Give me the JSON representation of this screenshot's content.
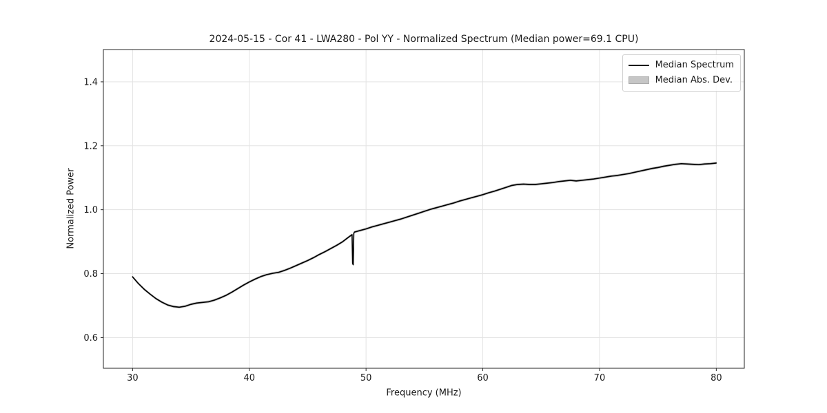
{
  "figure": {
    "background_color": "#ffffff"
  },
  "chart_data": {
    "type": "line",
    "title": "2024-05-15 - Cor 41 - LWA280 - Pol YY - Normalized Spectrum (Median power=69.1 CPU)",
    "xlabel": "Frequency (MHz)",
    "ylabel": "Normalized Power",
    "xlim": [
      27.5,
      82.4
    ],
    "ylim": [
      0.504,
      1.501
    ],
    "x_ticks": [
      30,
      40,
      50,
      60,
      70,
      80
    ],
    "y_ticks": [
      0.6,
      0.8,
      1.0,
      1.2,
      1.4
    ],
    "grid": true,
    "legend_position": "upper right",
    "legend": [
      {
        "label": "Median Spectrum",
        "handle": "line",
        "color": "#000000"
      },
      {
        "label": "Median Abs. Dev.",
        "handle": "patch",
        "color": "#c6c6c6"
      }
    ],
    "mad_band_halfwidth": 0.004,
    "notch": {
      "frequency_mhz": 48.9,
      "min_value": 0.828
    },
    "series": [
      {
        "name": "Median Spectrum",
        "x": [
          30.0,
          30.5,
          31.0,
          31.5,
          32.0,
          32.5,
          33.0,
          33.5,
          34.0,
          34.5,
          35.0,
          35.5,
          36.0,
          36.5,
          37.0,
          37.5,
          38.0,
          38.5,
          39.0,
          39.5,
          40.0,
          40.5,
          41.0,
          41.5,
          42.0,
          42.5,
          43.0,
          43.5,
          44.0,
          44.5,
          45.0,
          45.5,
          46.0,
          46.5,
          47.0,
          47.5,
          48.0,
          48.5,
          48.8,
          48.85,
          48.9,
          48.95,
          49.0,
          49.5,
          50.0,
          50.5,
          51.0,
          51.5,
          52.0,
          52.5,
          53.0,
          53.5,
          54.0,
          54.5,
          55.0,
          55.5,
          56.0,
          56.5,
          57.0,
          57.5,
          58.0,
          58.5,
          59.0,
          59.5,
          60.0,
          60.5,
          61.0,
          61.5,
          62.0,
          62.5,
          63.0,
          63.5,
          64.0,
          64.5,
          65.0,
          65.5,
          66.0,
          66.5,
          67.0,
          67.5,
          68.0,
          68.5,
          69.0,
          69.5,
          70.0,
          70.5,
          71.0,
          71.5,
          72.0,
          72.5,
          73.0,
          73.5,
          74.0,
          74.5,
          75.0,
          75.5,
          76.0,
          76.5,
          77.0,
          77.5,
          78.0,
          78.5,
          79.0,
          79.5,
          80.0
        ],
        "y": [
          0.79,
          0.769,
          0.751,
          0.736,
          0.722,
          0.711,
          0.702,
          0.697,
          0.695,
          0.698,
          0.704,
          0.708,
          0.71,
          0.712,
          0.717,
          0.724,
          0.732,
          0.742,
          0.753,
          0.764,
          0.774,
          0.783,
          0.791,
          0.797,
          0.801,
          0.804,
          0.81,
          0.817,
          0.825,
          0.833,
          0.841,
          0.85,
          0.86,
          0.869,
          0.879,
          0.889,
          0.9,
          0.914,
          0.922,
          0.832,
          0.828,
          0.926,
          0.93,
          0.935,
          0.94,
          0.946,
          0.951,
          0.956,
          0.961,
          0.966,
          0.971,
          0.977,
          0.983,
          0.989,
          0.995,
          1.001,
          1.006,
          1.011,
          1.016,
          1.021,
          1.027,
          1.032,
          1.037,
          1.042,
          1.047,
          1.053,
          1.058,
          1.064,
          1.07,
          1.076,
          1.079,
          1.08,
          1.079,
          1.079,
          1.081,
          1.083,
          1.085,
          1.088,
          1.09,
          1.092,
          1.09,
          1.092,
          1.094,
          1.096,
          1.099,
          1.102,
          1.105,
          1.107,
          1.11,
          1.113,
          1.117,
          1.121,
          1.125,
          1.129,
          1.132,
          1.136,
          1.139,
          1.142,
          1.144,
          1.143,
          1.142,
          1.141,
          1.143,
          1.144,
          1.146
        ]
      }
    ]
  },
  "colors": {
    "line": "#000000",
    "band": "#c9c9c9",
    "grid": "#e3e3e3",
    "spine": "#262626",
    "tick": "#262626",
    "text": "#1a1a1a",
    "legend_border": "#d0d0d0"
  }
}
